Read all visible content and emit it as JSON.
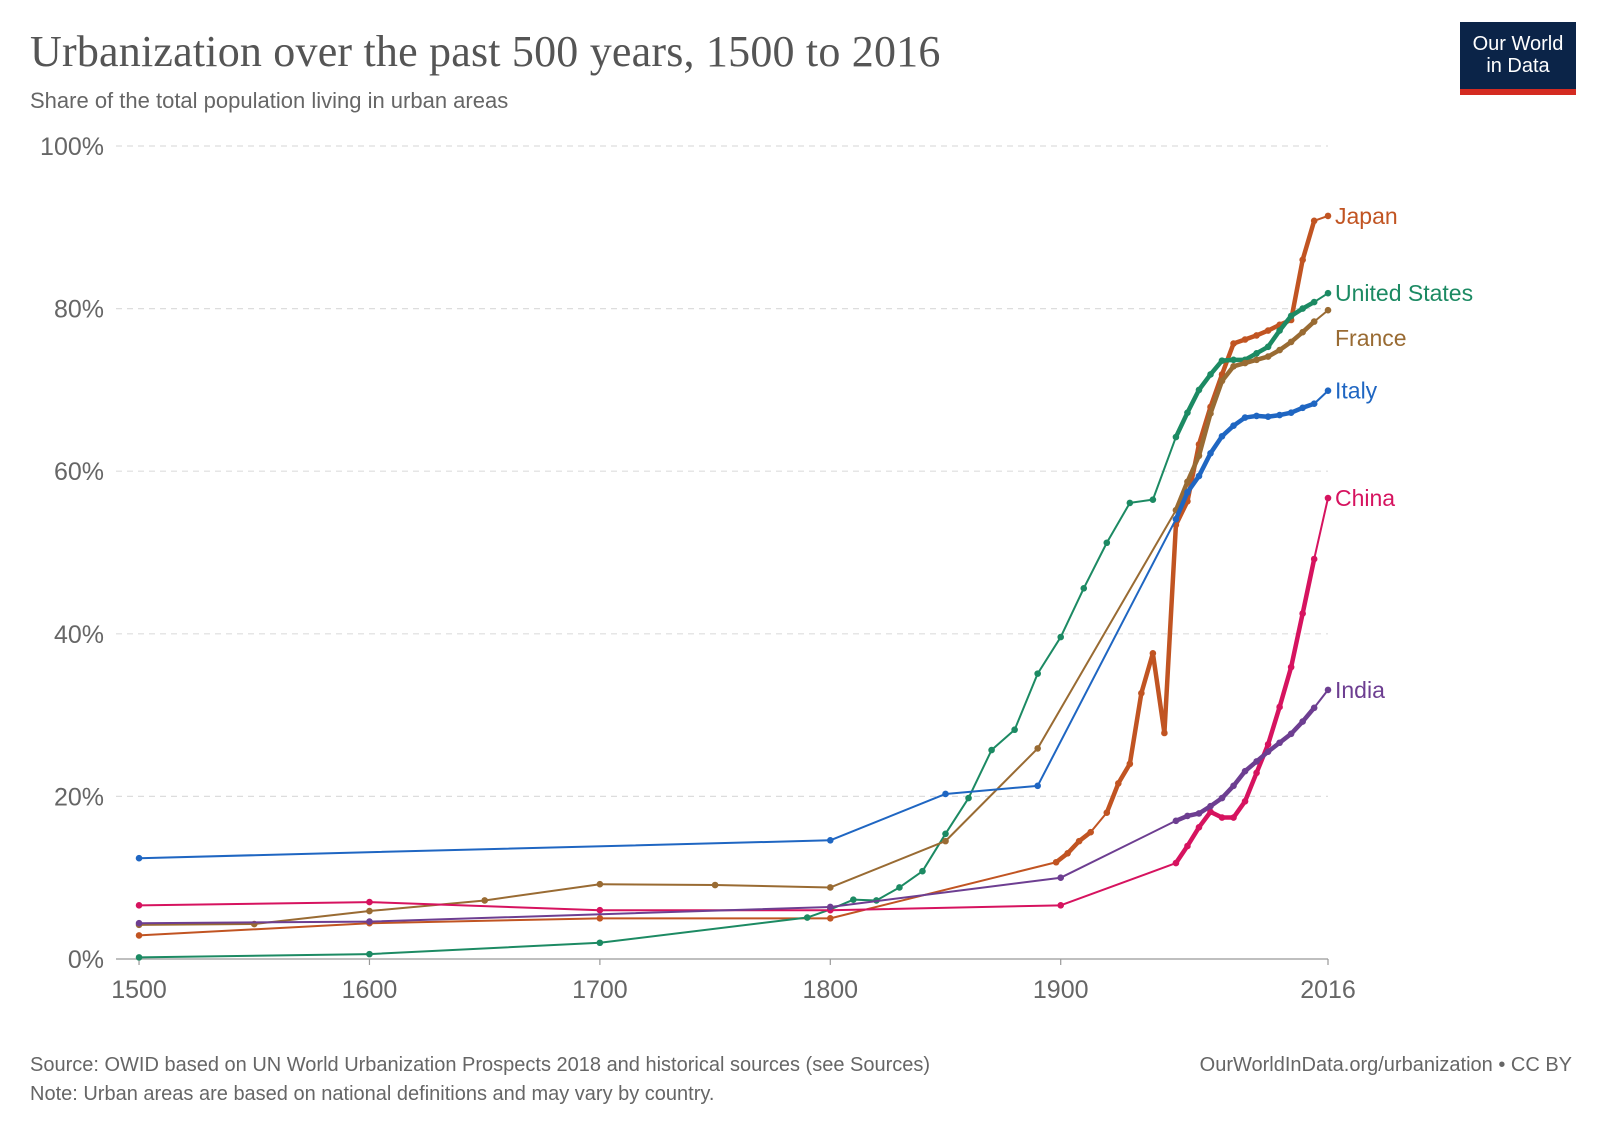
{
  "header": {
    "title": "Urbanization over the past 500 years, 1500 to 2016",
    "subtitle": "Share of the total population living in urban areas"
  },
  "logo": {
    "line1": "Our World",
    "line2": "in Data"
  },
  "footer": {
    "source": "Source: OWID based on UN World Urbanization Prospects 2018 and historical sources (see Sources)",
    "license": "OurWorldInData.org/urbanization • CC BY",
    "note": "Note: Urban areas are based on national definitions and may vary by country."
  },
  "chart_data": {
    "type": "line",
    "xlim": [
      1500,
      2016
    ],
    "ylim": [
      0,
      100
    ],
    "x_ticks": [
      1500,
      1600,
      1700,
      1800,
      1900,
      2016
    ],
    "x_tick_labels": [
      "1500",
      "1600",
      "1700",
      "1800",
      "1900",
      "2016"
    ],
    "y_ticks": [
      0,
      20,
      40,
      60,
      80,
      100
    ],
    "y_tick_labels": [
      "0%",
      "20%",
      "40%",
      "60%",
      "80%",
      "100%"
    ],
    "grid": "horizontal-dashed",
    "legend": "end-of-line labels",
    "series": [
      {
        "name": "Japan",
        "color": "#c15422",
        "points": [
          [
            1500,
            2.9
          ],
          [
            1600,
            4.4
          ],
          [
            1700,
            5.0
          ],
          [
            1800,
            5.0
          ],
          [
            1898,
            11.9
          ],
          [
            1903,
            13.0
          ],
          [
            1908,
            14.5
          ],
          [
            1913,
            15.6
          ],
          [
            1920,
            18.0
          ],
          [
            1925,
            21.6
          ],
          [
            1930,
            24.0
          ],
          [
            1935,
            32.7
          ],
          [
            1940,
            37.6
          ],
          [
            1945,
            27.8
          ],
          [
            1950,
            53.4
          ],
          [
            1955,
            56.3
          ],
          [
            1960,
            63.3
          ],
          [
            1965,
            67.9
          ],
          [
            1970,
            71.9
          ],
          [
            1975,
            75.7
          ],
          [
            1980,
            76.2
          ],
          [
            1985,
            76.7
          ],
          [
            1990,
            77.3
          ],
          [
            1995,
            78.0
          ],
          [
            2000,
            78.6
          ],
          [
            2005,
            86.0
          ],
          [
            2010,
            90.8
          ],
          [
            2016,
            91.4
          ]
        ]
      },
      {
        "name": "United States",
        "color": "#1c8a63",
        "points": [
          [
            1500,
            0.2
          ],
          [
            1600,
            0.6
          ],
          [
            1700,
            2.0
          ],
          [
            1790,
            5.1
          ],
          [
            1800,
            6.1
          ],
          [
            1810,
            7.3
          ],
          [
            1820,
            7.2
          ],
          [
            1830,
            8.8
          ],
          [
            1840,
            10.8
          ],
          [
            1850,
            15.4
          ],
          [
            1860,
            19.8
          ],
          [
            1870,
            25.7
          ],
          [
            1880,
            28.2
          ],
          [
            1890,
            35.1
          ],
          [
            1900,
            39.6
          ],
          [
            1910,
            45.6
          ],
          [
            1920,
            51.2
          ],
          [
            1930,
            56.1
          ],
          [
            1940,
            56.5
          ],
          [
            1950,
            64.2
          ],
          [
            1955,
            67.2
          ],
          [
            1960,
            70.0
          ],
          [
            1965,
            71.9
          ],
          [
            1970,
            73.6
          ],
          [
            1975,
            73.7
          ],
          [
            1980,
            73.7
          ],
          [
            1985,
            74.5
          ],
          [
            1990,
            75.3
          ],
          [
            1995,
            77.3
          ],
          [
            2000,
            79.1
          ],
          [
            2005,
            80.0
          ],
          [
            2010,
            80.8
          ],
          [
            2016,
            81.9
          ]
        ]
      },
      {
        "name": "France",
        "color": "#996b33",
        "points": [
          [
            1500,
            4.2
          ],
          [
            1550,
            4.3
          ],
          [
            1600,
            5.9
          ],
          [
            1650,
            7.2
          ],
          [
            1700,
            9.2
          ],
          [
            1750,
            9.1
          ],
          [
            1800,
            8.8
          ],
          [
            1850,
            14.5
          ],
          [
            1890,
            25.9
          ],
          [
            1950,
            55.2
          ],
          [
            1955,
            58.7
          ],
          [
            1960,
            61.9
          ],
          [
            1965,
            67.1
          ],
          [
            1970,
            71.1
          ],
          [
            1975,
            72.9
          ],
          [
            1980,
            73.3
          ],
          [
            1985,
            73.7
          ],
          [
            1990,
            74.1
          ],
          [
            1995,
            74.9
          ],
          [
            2000,
            75.9
          ],
          [
            2005,
            77.1
          ],
          [
            2010,
            78.4
          ],
          [
            2016,
            79.8
          ]
        ]
      },
      {
        "name": "Italy",
        "color": "#1f66c2",
        "points": [
          [
            1500,
            12.4
          ],
          [
            1800,
            14.6
          ],
          [
            1850,
            20.3
          ],
          [
            1890,
            21.3
          ],
          [
            1950,
            54.1
          ],
          [
            1955,
            57.4
          ],
          [
            1960,
            59.4
          ],
          [
            1965,
            62.2
          ],
          [
            1970,
            64.3
          ],
          [
            1975,
            65.6
          ],
          [
            1980,
            66.6
          ],
          [
            1985,
            66.8
          ],
          [
            1990,
            66.7
          ],
          [
            1995,
            66.9
          ],
          [
            2000,
            67.2
          ],
          [
            2005,
            67.8
          ],
          [
            2010,
            68.3
          ],
          [
            2016,
            69.9
          ]
        ]
      },
      {
        "name": "China",
        "color": "#d6135f",
        "points": [
          [
            1500,
            6.6
          ],
          [
            1600,
            7.0
          ],
          [
            1700,
            6.0
          ],
          [
            1800,
            6.0
          ],
          [
            1900,
            6.6
          ],
          [
            1950,
            11.8
          ],
          [
            1955,
            13.9
          ],
          [
            1960,
            16.2
          ],
          [
            1965,
            18.1
          ],
          [
            1970,
            17.4
          ],
          [
            1975,
            17.4
          ],
          [
            1980,
            19.4
          ],
          [
            1985,
            22.9
          ],
          [
            1990,
            26.4
          ],
          [
            1995,
            31.0
          ],
          [
            2000,
            35.9
          ],
          [
            2005,
            42.5
          ],
          [
            2010,
            49.2
          ],
          [
            2016,
            56.7
          ]
        ]
      },
      {
        "name": "India",
        "color": "#6d3e91",
        "points": [
          [
            1500,
            4.4
          ],
          [
            1600,
            4.6
          ],
          [
            1800,
            6.4
          ],
          [
            1900,
            10.0
          ],
          [
            1950,
            17.0
          ],
          [
            1955,
            17.6
          ],
          [
            1960,
            17.9
          ],
          [
            1965,
            18.8
          ],
          [
            1970,
            19.8
          ],
          [
            1975,
            21.3
          ],
          [
            1980,
            23.1
          ],
          [
            1985,
            24.3
          ],
          [
            1990,
            25.5
          ],
          [
            1995,
            26.6
          ],
          [
            2000,
            27.7
          ],
          [
            2005,
            29.2
          ],
          [
            2010,
            30.9
          ],
          [
            2016,
            33.1
          ]
        ]
      }
    ]
  }
}
